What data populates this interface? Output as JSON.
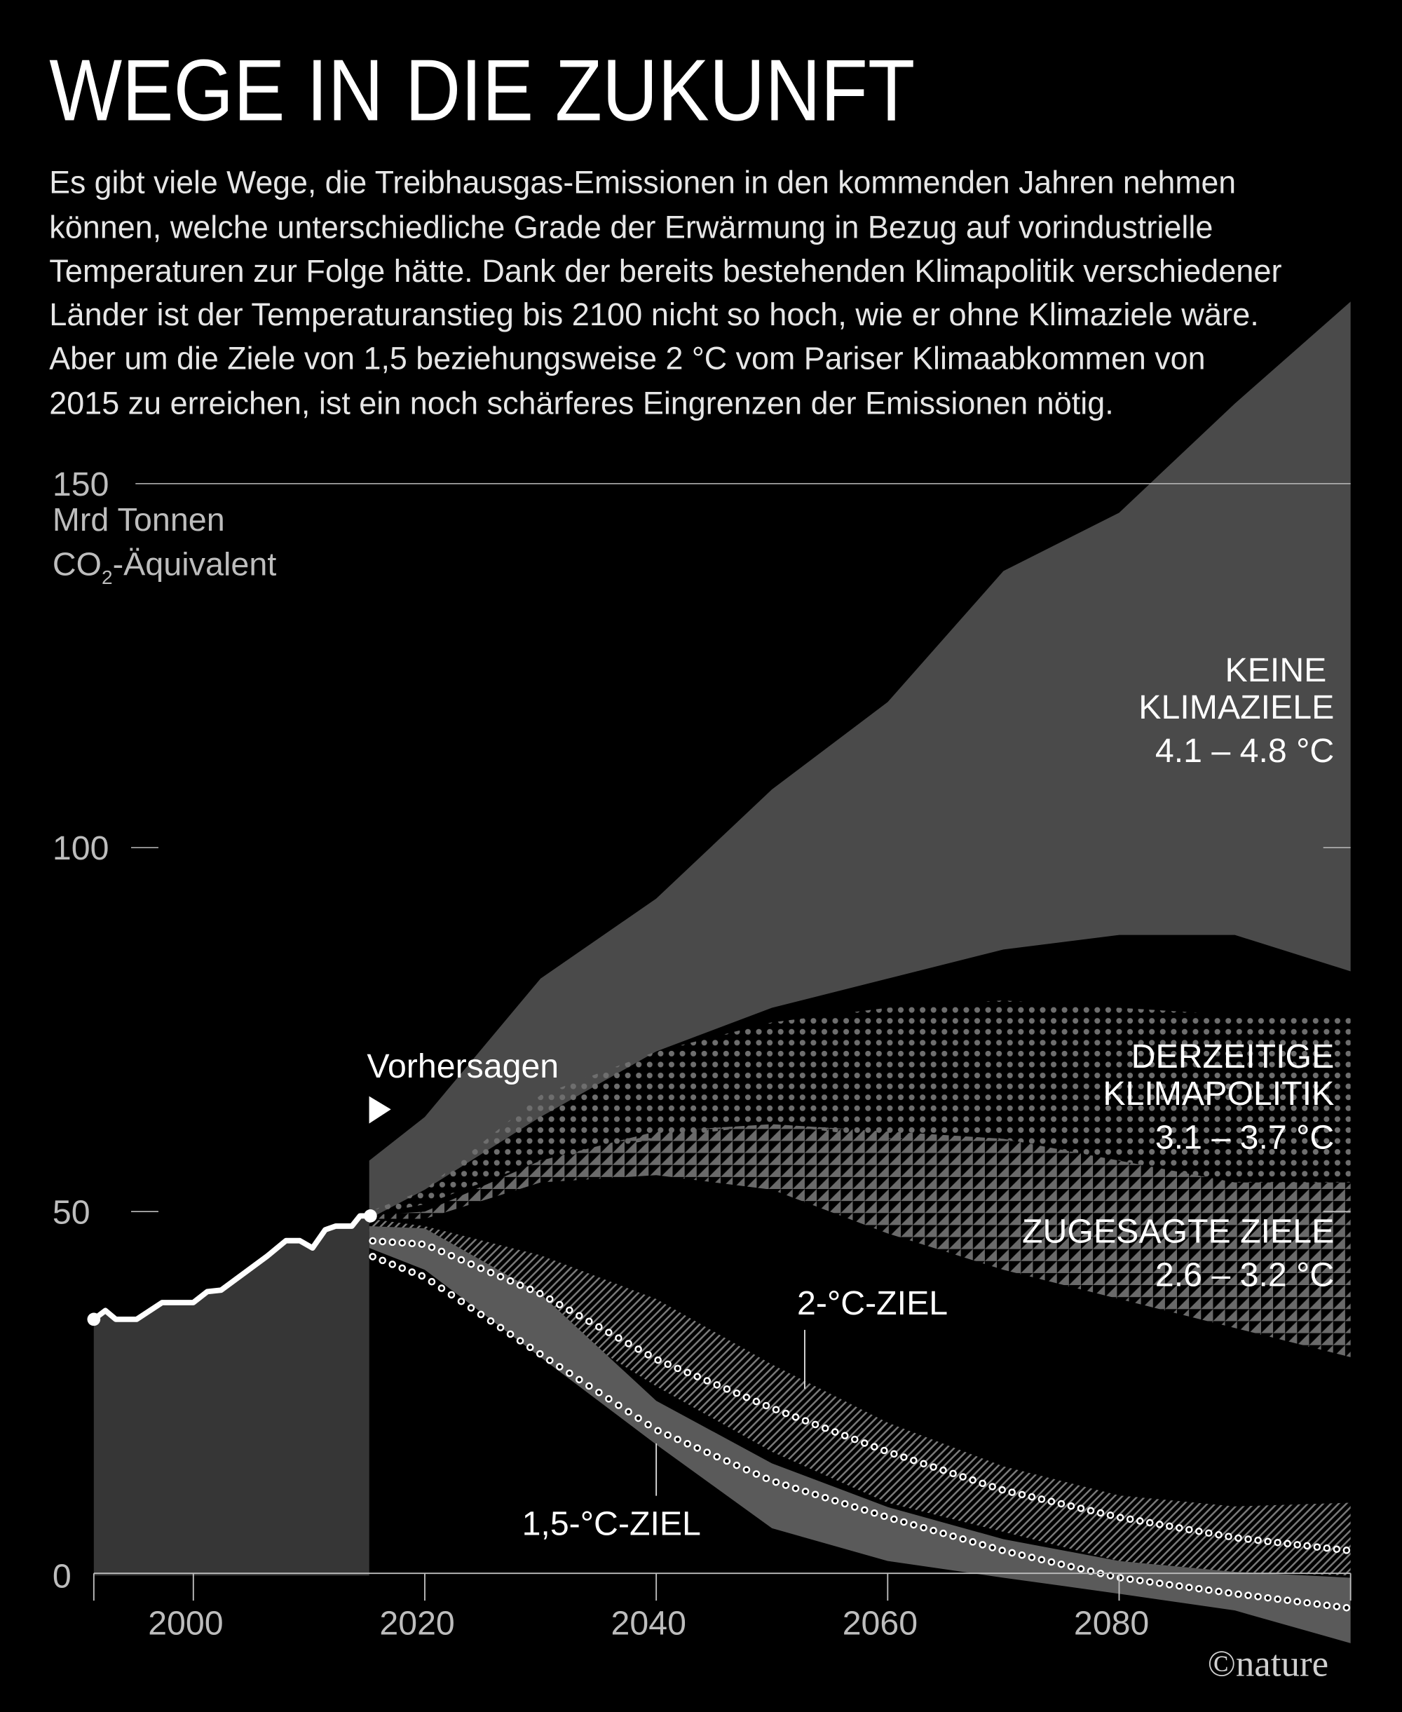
{
  "title": "WEGE IN DIE ZUKUNFT",
  "intro_lines": [
    "Es gibt viele Wege, die Treibhausgas-Emissionen in den kommenden Jahren nehmen",
    "können, welche unterschiedliche Grade der Erwärmung in Bezug auf vorindustrielle",
    "Temperaturen zur Folge hätte. Dank der bereits bestehenden Klimapolitik verschiedener",
    "Länder ist der Temperaturanstieg bis 2100 nicht so hoch, wie er ohne Klimaziele wäre.",
    "Aber um die Ziele von 1,5 beziehungsweise 2 °C vom Pariser Klimaabkommen von",
    "2015 zu erreichen, ist ein noch schärferes Eingrenzen der Emissionen nötig."
  ],
  "logo": "©nature",
  "chart_data": {
    "type": "area",
    "ylabel_lines": [
      "Mrd Tonnen",
      "CO",
      "2",
      "-Äquivalent"
    ],
    "ylim": [
      0,
      150
    ],
    "xlim": [
      1991.4,
      2100
    ],
    "y_ticks": [
      "150",
      "100",
      "50",
      "0"
    ],
    "y_tick_values": [
      150,
      100,
      50,
      0
    ],
    "x_ticks": [
      "2000",
      "2020",
      "2040",
      "2060",
      "2080"
    ],
    "x_tick_values": [
      2000,
      2020,
      2040,
      2060,
      2080
    ],
    "forecast_label": "Vorhersagen",
    "forecast_start": 2015.2,
    "historical": {
      "years": [
        1991.4,
        1992.4,
        1993.3,
        1995.1,
        1997.3,
        2000,
        2001.2,
        2002.4,
        2006.4,
        2008,
        2009.2,
        2010.3,
        2011.4,
        2012.3,
        2013.7,
        2014.4,
        2015.3
      ],
      "values": [
        35.2,
        36.4,
        35.2,
        35.2,
        37.5,
        37.5,
        39,
        39.2,
        43.9,
        46,
        46,
        45,
        47.5,
        48,
        48,
        49.4,
        49.4
      ]
    },
    "scenario_years": [
      2015.2,
      2020,
      2030,
      2040,
      2050,
      2060,
      2070,
      2080,
      2090,
      2100
    ],
    "scenarios": [
      {
        "name": "keine",
        "label_lines": [
          "KEINE",
          "KLIMAZIELE",
          "4.1 – 4.8 °C"
        ],
        "pattern": "solid",
        "low": [
          49,
          53,
          63,
          72,
          78,
          82,
          86,
          88,
          88,
          83
        ],
        "high": [
          57,
          63,
          82,
          93,
          108,
          120,
          138,
          146,
          161,
          175
        ]
      },
      {
        "name": "derzeitige",
        "label_lines": [
          "DERZEITIGE",
          "KLIMAPOLITIK",
          "3.1 – 3.7 °C"
        ],
        "pattern": "dots",
        "low": [
          49.5,
          51,
          57,
          60,
          62,
          60,
          60,
          57,
          54,
          54
        ],
        "high": [
          50,
          53,
          66,
          72,
          76,
          78,
          79,
          78,
          77,
          77
        ]
      },
      {
        "name": "zugesagte",
        "label_lines": [
          "ZUGESAGTE ZIELE",
          "2.6 – 3.2 °C"
        ],
        "pattern": "triangles",
        "low": [
          49,
          49,
          54,
          55,
          53,
          47,
          42,
          38,
          34,
          30
        ],
        "high": [
          49.5,
          50,
          57,
          61,
          62,
          61,
          60,
          57,
          54,
          54
        ]
      },
      {
        "name": "zwei-grad",
        "label_lines": [
          "2-°C-ZIEL"
        ],
        "pattern": "hatch",
        "low": [
          47,
          45,
          36,
          26,
          17,
          10,
          6,
          2,
          0.5,
          0
        ],
        "high": [
          49,
          48,
          44,
          38,
          29,
          21,
          15,
          11,
          9.5,
          10
        ],
        "median": [
          46,
          45.5,
          38.7,
          29.7,
          23,
          17,
          11.7,
          8,
          5.2,
          3.4
        ]
      },
      {
        "name": "eins-fuenf-grad",
        "label_lines": [
          "1,5-°C-ZIEL"
        ],
        "pattern": "solid-light",
        "low": [
          45,
          42,
          30,
          18,
          6.5,
          2,
          -0.3,
          -2.5,
          -4.8,
          -9.3
        ],
        "high": [
          48,
          47.7,
          38.7,
          24,
          15.4,
          9.4,
          5,
          2,
          0.5,
          -0.3
        ],
        "median": [
          44,
          41,
          30.4,
          20,
          13,
          8,
          3.4,
          -0.3,
          -2.5,
          -4.5
        ]
      }
    ]
  },
  "colors": {
    "background": "#000000",
    "historic": "#363636",
    "band": "#4a4a4a",
    "band_light": "#5a5a5a",
    "pattern": "#6e6e6e",
    "text": "#ffffff",
    "axis": "#bdbdbd"
  }
}
